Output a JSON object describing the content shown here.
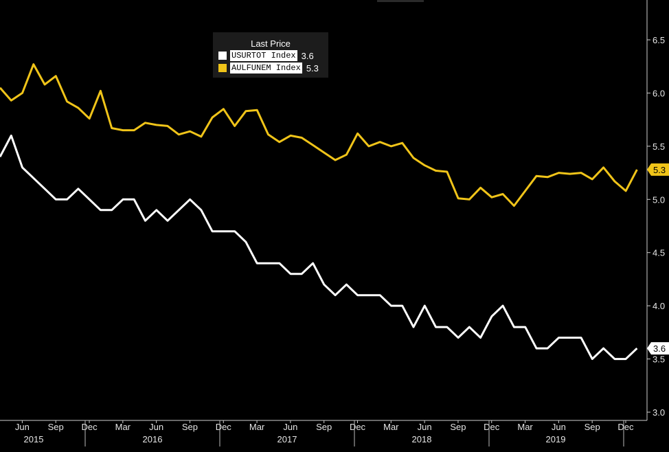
{
  "legend": {
    "title": "Last Price",
    "items": [
      {
        "name": "USURTOT Index",
        "value": "3.6",
        "color": "#ffffff"
      },
      {
        "name": "AULFUNEM Index",
        "value": "5.3",
        "color": "#f0c419"
      }
    ]
  },
  "chart_data": {
    "type": "line",
    "background": "#000000",
    "ylim": [
      3.0,
      6.5
    ],
    "yticks": [
      "3.0",
      "3.5",
      "4.0",
      "4.5",
      "5.0",
      "5.5",
      "6.0",
      "6.5"
    ],
    "y_axis_side": "right",
    "grid": false,
    "x_start": "2015-04",
    "month_ticks": [
      "Jun",
      "Sep",
      "Dec",
      "Mar",
      "Jun",
      "Sep",
      "Dec",
      "Mar",
      "Jun",
      "Sep",
      "Dec",
      "Mar",
      "Jun",
      "Sep",
      "Dec",
      "Mar",
      "Jun",
      "Sep",
      "Dec"
    ],
    "years": [
      "2015",
      "2016",
      "2017",
      "2018",
      "2019"
    ],
    "series": [
      {
        "name": "USURTOT Index",
        "color": "#ffffff",
        "last_label": "3.6",
        "values": [
          5.4,
          5.6,
          5.3,
          5.2,
          5.1,
          5.0,
          5.0,
          5.1,
          5.0,
          4.9,
          4.9,
          5.0,
          5.0,
          4.8,
          4.9,
          4.8,
          4.9,
          5.0,
          4.9,
          4.7,
          4.7,
          4.7,
          4.6,
          4.4,
          4.4,
          4.4,
          4.3,
          4.3,
          4.4,
          4.2,
          4.1,
          4.2,
          4.1,
          4.1,
          4.1,
          4.0,
          4.0,
          3.8,
          4.0,
          3.8,
          3.8,
          3.7,
          3.8,
          3.7,
          3.9,
          4.0,
          3.8,
          3.8,
          3.6,
          3.6,
          3.7,
          3.7,
          3.7,
          3.5,
          3.6,
          3.5,
          3.5,
          3.6
        ]
      },
      {
        "name": "AULFUNEM Index",
        "color": "#f0c419",
        "last_label": "5.3",
        "values": [
          6.05,
          5.93,
          6.0,
          6.27,
          6.08,
          6.16,
          5.92,
          5.86,
          5.76,
          6.02,
          5.67,
          5.65,
          5.65,
          5.72,
          5.7,
          5.69,
          5.61,
          5.64,
          5.59,
          5.77,
          5.85,
          5.69,
          5.83,
          5.84,
          5.61,
          5.54,
          5.6,
          5.58,
          5.51,
          5.44,
          5.37,
          5.42,
          5.62,
          5.5,
          5.54,
          5.5,
          5.53,
          5.39,
          5.32,
          5.27,
          5.26,
          5.01,
          5.0,
          5.11,
          5.02,
          5.05,
          4.94,
          5.08,
          5.22,
          5.21,
          5.25,
          5.24,
          5.25,
          5.19,
          5.3,
          5.17,
          5.08,
          5.28
        ]
      }
    ]
  }
}
